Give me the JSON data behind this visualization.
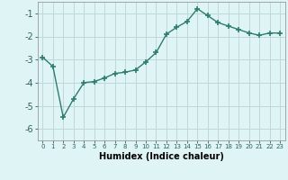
{
  "x": [
    0,
    1,
    2,
    3,
    4,
    5,
    6,
    7,
    8,
    9,
    10,
    11,
    12,
    13,
    14,
    15,
    16,
    17,
    18,
    19,
    20,
    21,
    22,
    23
  ],
  "y": [
    -2.9,
    -3.3,
    -5.5,
    -4.7,
    -4.0,
    -3.95,
    -3.8,
    -3.6,
    -3.55,
    -3.45,
    -3.1,
    -2.7,
    -1.9,
    -1.6,
    -1.35,
    -0.8,
    -1.1,
    -1.4,
    -1.55,
    -1.7,
    -1.85,
    -1.95,
    -1.85,
    -1.85
  ],
  "xlabel": "Humidex (Indice chaleur)",
  "line_color": "#2e7d6e",
  "marker": "+",
  "marker_size": 4,
  "marker_linewidth": 1.2,
  "line_width": 1.0,
  "background_color": "#dff4f4",
  "grid_color": "#c0d8d8",
  "ylim": [
    -6.5,
    -0.5
  ],
  "xlim": [
    -0.5,
    23.5
  ],
  "yticks": [
    -6,
    -5,
    -4,
    -3,
    -2,
    -1
  ],
  "ytick_labels": [
    "-6",
    "-5",
    "-4",
    "-3",
    "-2",
    "-1"
  ],
  "xtick_labels": [
    "0",
    "1",
    "2",
    "3",
    "4",
    "5",
    "6",
    "7",
    "8",
    "9",
    "10",
    "11",
    "12",
    "13",
    "14",
    "15",
    "16",
    "17",
    "18",
    "19",
    "20",
    "21",
    "22",
    "23"
  ],
  "ytick_fontsize": 7,
  "xtick_fontsize": 5,
  "xlabel_fontsize": 7
}
